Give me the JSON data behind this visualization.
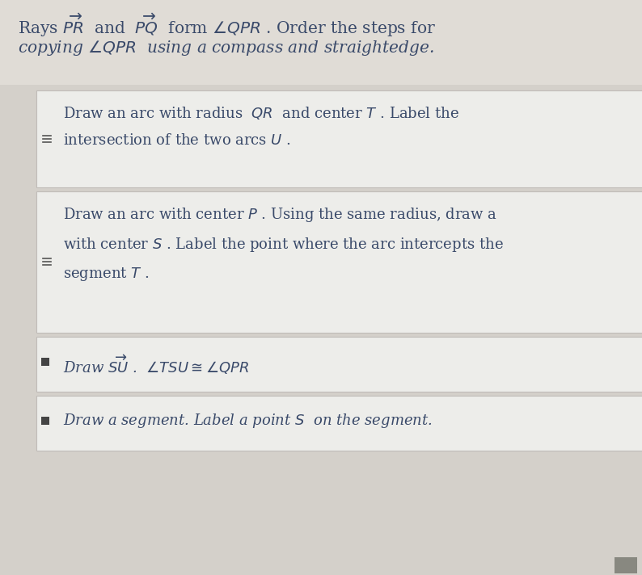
{
  "background_color": "#c8c4bc",
  "top_bg": "#e8e4de",
  "box_bg": "#eceae6",
  "box_bg2": "#e8e5e0",
  "border_color": "#b0aca6",
  "text_color": "#3a4a6a",
  "title_line1": "Rays $\\overrightarrow{PR}$  and  $\\overrightarrow{PQ}$  form $\\angle QPR$ . Order the steps for",
  "title_line2": "copying $\\angle QPR$  using a compass and straightedge.",
  "box1_line1": "Draw an arc with radius  $QR$  and center $T$ . Label the",
  "box1_line2": "intersection of the two arcs $U$ .",
  "box2_line1": "Draw an arc with center $P$ . Using the same radius, draw a",
  "box2_line2": "with center $S$ . Label the point where the arc intercepts the",
  "box2_line3": "segment $T$ .",
  "box3_text": "Draw $\\overrightarrow{SU}$ .  $\\angle TSU \\cong \\angle QPR$",
  "box4_text": "Draw a segment. Label a point $S$  on the segment.",
  "font_size_title": 14.5,
  "font_size_body": 13.0,
  "drag_color": "#555555"
}
